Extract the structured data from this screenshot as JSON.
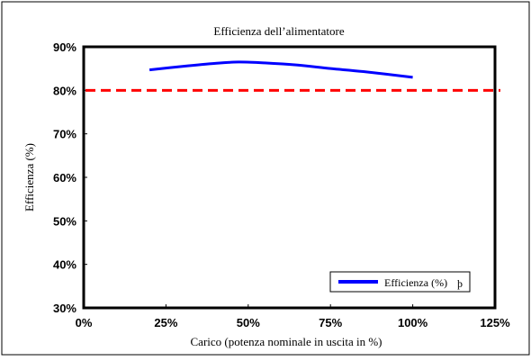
{
  "chart_data": {
    "type": "line",
    "title": "Efficienza dell’alimentatore",
    "xlabel": "Carico (potenza nominale in uscita in %)",
    "ylabel": "Efficienza (%)",
    "x_ticks": [
      "0%",
      "25%",
      "50%",
      "75%",
      "100%",
      "125%"
    ],
    "y_ticks": [
      "30%",
      "40%",
      "50%",
      "60%",
      "70%",
      "80%",
      "90%"
    ],
    "xlim": [
      0,
      125
    ],
    "ylim": [
      30,
      90
    ],
    "grid": false,
    "legend_position": "bottom-right",
    "series": [
      {
        "name": "Efficienza (%)",
        "color": "#0000ff",
        "style": "solid",
        "x": [
          20,
          30,
          40,
          47,
          55,
          65,
          75,
          85,
          100
        ],
        "y": [
          84.7,
          85.5,
          86.2,
          86.5,
          86.3,
          85.8,
          85.0,
          84.3,
          83.0
        ]
      }
    ],
    "reference_lines": [
      {
        "axis": "y",
        "value": 80,
        "color": "#ff0000",
        "style": "dashed"
      }
    ],
    "legend_suffix": "þ"
  }
}
